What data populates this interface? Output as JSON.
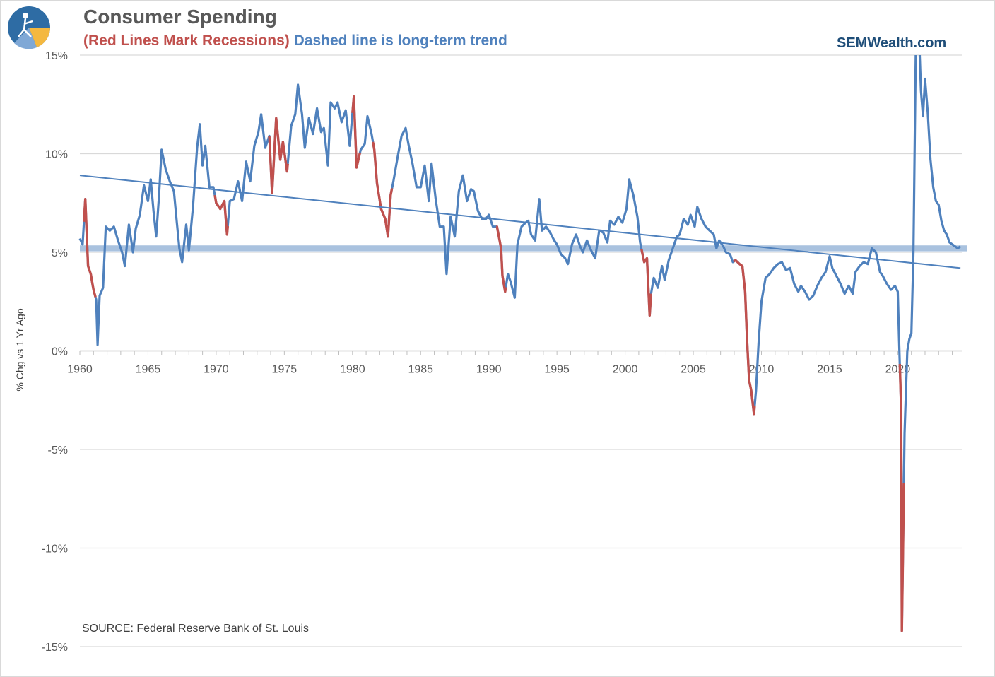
{
  "header": {
    "title": "Consumer Spending",
    "subtitle_red": "(Red Lines Mark Recessions)",
    "subtitle_blue": "Dashed line is long-term trend",
    "brand": "SEMWealth.com"
  },
  "footer": {
    "source": "SOURCE:  Federal Reserve Bank of St. Louis"
  },
  "colors": {
    "series": "#4f81bd",
    "recession": "#c0504d",
    "band": "#a9c2df",
    "grid": "#d9d9d9",
    "axis": "#bfbfbf"
  },
  "icons": {
    "logo": "sem-logo-icon"
  },
  "chart_data": {
    "type": "line",
    "xlabel": "",
    "ylabel": "% Chg vs 1 Yr Ago",
    "xlim": [
      1960,
      2024.8
    ],
    "ylim": [
      -15,
      15
    ],
    "x_ticks": [
      1960,
      1965,
      1970,
      1975,
      1980,
      1985,
      1990,
      1995,
      2000,
      2005,
      2010,
      2015,
      2020
    ],
    "y_ticks": [
      {
        "value": 15,
        "label": "15%"
      },
      {
        "value": 10,
        "label": "10%"
      },
      {
        "value": 5,
        "label": "5%"
      },
      {
        "value": 0,
        "label": "0%"
      },
      {
        "value": -5,
        "label": "-5%"
      },
      {
        "value": -10,
        "label": "-10%"
      },
      {
        "value": -15,
        "label": "-15%"
      }
    ],
    "grid": true,
    "series": [
      {
        "role": "main",
        "points": [
          [
            1960.0,
            5.7
          ],
          [
            1960.2,
            5.4
          ],
          [
            1960.4,
            7.7
          ],
          [
            1960.6,
            4.3
          ],
          [
            1960.8,
            3.9
          ],
          [
            1961.0,
            3.1
          ],
          [
            1961.2,
            2.6
          ],
          [
            1961.3,
            0.3
          ],
          [
            1961.45,
            2.8
          ],
          [
            1961.7,
            3.2
          ],
          [
            1961.9,
            6.3
          ],
          [
            1962.2,
            6.1
          ],
          [
            1962.5,
            6.3
          ],
          [
            1962.8,
            5.6
          ],
          [
            1963.1,
            5.0
          ],
          [
            1963.3,
            4.3
          ],
          [
            1963.6,
            6.4
          ],
          [
            1963.9,
            5.0
          ],
          [
            1964.1,
            6.2
          ],
          [
            1964.4,
            6.9
          ],
          [
            1964.7,
            8.4
          ],
          [
            1965.0,
            7.6
          ],
          [
            1965.2,
            8.7
          ],
          [
            1965.4,
            7.1
          ],
          [
            1965.6,
            5.8
          ],
          [
            1965.8,
            7.8
          ],
          [
            1966.0,
            10.2
          ],
          [
            1966.3,
            9.2
          ],
          [
            1966.6,
            8.6
          ],
          [
            1966.9,
            8.1
          ],
          [
            1967.1,
            6.6
          ],
          [
            1967.3,
            5.2
          ],
          [
            1967.5,
            4.5
          ],
          [
            1967.8,
            6.4
          ],
          [
            1968.0,
            5.1
          ],
          [
            1968.3,
            7.3
          ],
          [
            1968.6,
            10.3
          ],
          [
            1968.8,
            11.5
          ],
          [
            1969.0,
            9.4
          ],
          [
            1969.2,
            10.4
          ],
          [
            1969.5,
            8.3
          ],
          [
            1969.8,
            8.3
          ],
          [
            1970.0,
            7.5
          ],
          [
            1970.3,
            7.2
          ],
          [
            1970.6,
            7.6
          ],
          [
            1970.8,
            5.9
          ],
          [
            1971.0,
            7.6
          ],
          [
            1971.3,
            7.7
          ],
          [
            1971.6,
            8.6
          ],
          [
            1971.9,
            7.6
          ],
          [
            1972.2,
            9.6
          ],
          [
            1972.5,
            8.6
          ],
          [
            1972.8,
            10.4
          ],
          [
            1973.1,
            11.1
          ],
          [
            1973.3,
            12.0
          ],
          [
            1973.6,
            10.3
          ],
          [
            1973.9,
            10.9
          ],
          [
            1974.1,
            8.0
          ],
          [
            1974.4,
            11.8
          ],
          [
            1974.7,
            9.7
          ],
          [
            1974.9,
            10.6
          ],
          [
            1975.2,
            9.1
          ],
          [
            1975.5,
            11.4
          ],
          [
            1975.8,
            12.0
          ],
          [
            1976.0,
            13.5
          ],
          [
            1976.3,
            12.0
          ],
          [
            1976.5,
            10.3
          ],
          [
            1976.8,
            11.8
          ],
          [
            1977.1,
            11.0
          ],
          [
            1977.4,
            12.3
          ],
          [
            1977.7,
            11.1
          ],
          [
            1977.9,
            11.3
          ],
          [
            1978.2,
            9.4
          ],
          [
            1978.4,
            12.6
          ],
          [
            1978.7,
            12.3
          ],
          [
            1978.9,
            12.6
          ],
          [
            1979.2,
            11.6
          ],
          [
            1979.5,
            12.2
          ],
          [
            1979.8,
            10.4
          ],
          [
            1980.1,
            12.9
          ],
          [
            1980.3,
            9.3
          ],
          [
            1980.6,
            10.2
          ],
          [
            1980.9,
            10.5
          ],
          [
            1981.1,
            11.9
          ],
          [
            1981.4,
            11.0
          ],
          [
            1981.6,
            10.2
          ],
          [
            1981.8,
            8.5
          ],
          [
            1982.1,
            7.2
          ],
          [
            1982.4,
            6.7
          ],
          [
            1982.6,
            5.8
          ],
          [
            1982.8,
            7.9
          ],
          [
            1983.0,
            8.6
          ],
          [
            1983.3,
            9.8
          ],
          [
            1983.6,
            10.9
          ],
          [
            1983.9,
            11.3
          ],
          [
            1984.1,
            10.5
          ],
          [
            1984.4,
            9.5
          ],
          [
            1984.7,
            8.3
          ],
          [
            1985.0,
            8.3
          ],
          [
            1985.3,
            9.4
          ],
          [
            1985.6,
            7.6
          ],
          [
            1985.8,
            9.5
          ],
          [
            1986.1,
            7.7
          ],
          [
            1986.4,
            6.3
          ],
          [
            1986.7,
            6.3
          ],
          [
            1986.9,
            3.9
          ],
          [
            1987.2,
            6.8
          ],
          [
            1987.5,
            5.8
          ],
          [
            1987.8,
            8.1
          ],
          [
            1988.1,
            8.9
          ],
          [
            1988.4,
            7.6
          ],
          [
            1988.7,
            8.2
          ],
          [
            1988.9,
            8.1
          ],
          [
            1989.2,
            7.1
          ],
          [
            1989.5,
            6.7
          ],
          [
            1989.8,
            6.7
          ],
          [
            1990.0,
            6.9
          ],
          [
            1990.3,
            6.3
          ],
          [
            1990.6,
            6.3
          ],
          [
            1990.9,
            5.2
          ],
          [
            1991.0,
            3.8
          ],
          [
            1991.2,
            3.0
          ],
          [
            1991.4,
            3.9
          ],
          [
            1991.6,
            3.5
          ],
          [
            1991.9,
            2.7
          ],
          [
            1992.1,
            5.4
          ],
          [
            1992.4,
            6.3
          ],
          [
            1992.7,
            6.5
          ],
          [
            1992.9,
            6.6
          ],
          [
            1993.1,
            5.9
          ],
          [
            1993.4,
            5.6
          ],
          [
            1993.7,
            7.7
          ],
          [
            1993.9,
            6.1
          ],
          [
            1994.2,
            6.3
          ],
          [
            1994.5,
            6.0
          ],
          [
            1994.8,
            5.6
          ],
          [
            1995.0,
            5.4
          ],
          [
            1995.3,
            4.9
          ],
          [
            1995.6,
            4.7
          ],
          [
            1995.8,
            4.4
          ],
          [
            1996.1,
            5.4
          ],
          [
            1996.4,
            5.9
          ],
          [
            1996.7,
            5.3
          ],
          [
            1996.9,
            5.0
          ],
          [
            1997.2,
            5.6
          ],
          [
            1997.5,
            5.1
          ],
          [
            1997.8,
            4.7
          ],
          [
            1998.1,
            6.1
          ],
          [
            1998.4,
            6.0
          ],
          [
            1998.7,
            5.5
          ],
          [
            1998.9,
            6.6
          ],
          [
            1999.2,
            6.4
          ],
          [
            1999.5,
            6.8
          ],
          [
            1999.8,
            6.5
          ],
          [
            2000.1,
            7.2
          ],
          [
            2000.3,
            8.7
          ],
          [
            2000.6,
            7.9
          ],
          [
            2000.9,
            6.8
          ],
          [
            2001.1,
            5.5
          ],
          [
            2001.4,
            4.5
          ],
          [
            2001.6,
            4.7
          ],
          [
            2001.8,
            1.8
          ],
          [
            2001.9,
            2.9
          ],
          [
            2002.1,
            3.7
          ],
          [
            2002.4,
            3.2
          ],
          [
            2002.7,
            4.3
          ],
          [
            2002.9,
            3.6
          ],
          [
            2003.2,
            4.6
          ],
          [
            2003.5,
            5.2
          ],
          [
            2003.8,
            5.8
          ],
          [
            2004.0,
            5.9
          ],
          [
            2004.3,
            6.7
          ],
          [
            2004.6,
            6.4
          ],
          [
            2004.8,
            6.9
          ],
          [
            2005.1,
            6.3
          ],
          [
            2005.3,
            7.3
          ],
          [
            2005.6,
            6.7
          ],
          [
            2005.9,
            6.3
          ],
          [
            2006.2,
            6.1
          ],
          [
            2006.5,
            5.9
          ],
          [
            2006.7,
            5.2
          ],
          [
            2006.9,
            5.6
          ],
          [
            2007.2,
            5.3
          ],
          [
            2007.4,
            5.0
          ],
          [
            2007.7,
            4.9
          ],
          [
            2007.9,
            4.5
          ],
          [
            2008.1,
            4.6
          ],
          [
            2008.4,
            4.4
          ],
          [
            2008.6,
            4.3
          ],
          [
            2008.8,
            3.0
          ],
          [
            2008.95,
            0.5
          ],
          [
            2009.1,
            -1.5
          ],
          [
            2009.25,
            -2.0
          ],
          [
            2009.45,
            -3.2
          ],
          [
            2009.6,
            -2.0
          ],
          [
            2009.8,
            0.5
          ],
          [
            2010.0,
            2.5
          ],
          [
            2010.3,
            3.7
          ],
          [
            2010.6,
            3.9
          ],
          [
            2010.9,
            4.2
          ],
          [
            2011.2,
            4.4
          ],
          [
            2011.5,
            4.5
          ],
          [
            2011.8,
            4.1
          ],
          [
            2012.1,
            4.2
          ],
          [
            2012.4,
            3.4
          ],
          [
            2012.7,
            3.0
          ],
          [
            2012.9,
            3.3
          ],
          [
            2013.2,
            3.0
          ],
          [
            2013.5,
            2.6
          ],
          [
            2013.8,
            2.8
          ],
          [
            2014.1,
            3.3
          ],
          [
            2014.4,
            3.7
          ],
          [
            2014.7,
            4.0
          ],
          [
            2015.0,
            4.8
          ],
          [
            2015.2,
            4.2
          ],
          [
            2015.5,
            3.8
          ],
          [
            2015.8,
            3.4
          ],
          [
            2016.1,
            2.9
          ],
          [
            2016.4,
            3.3
          ],
          [
            2016.7,
            2.9
          ],
          [
            2016.9,
            4.0
          ],
          [
            2017.2,
            4.3
          ],
          [
            2017.5,
            4.5
          ],
          [
            2017.8,
            4.4
          ],
          [
            2018.1,
            5.2
          ],
          [
            2018.4,
            5.0
          ],
          [
            2018.7,
            4.0
          ],
          [
            2018.9,
            3.8
          ],
          [
            2019.2,
            3.4
          ],
          [
            2019.5,
            3.1
          ],
          [
            2019.8,
            3.3
          ],
          [
            2020.0,
            3.0
          ],
          [
            2020.1,
            0.5
          ],
          [
            2020.25,
            -3.0
          ],
          [
            2020.3,
            -14.2
          ],
          [
            2020.5,
            -4.2
          ],
          [
            2020.7,
            0.0
          ],
          [
            2020.85,
            0.6
          ],
          [
            2021.0,
            0.9
          ],
          [
            2021.15,
            5.0
          ],
          [
            2021.3,
            14.0
          ],
          [
            2021.4,
            19.0
          ],
          [
            2021.55,
            16.2
          ],
          [
            2021.7,
            13.2
          ],
          [
            2021.85,
            11.9
          ],
          [
            2022.0,
            13.8
          ],
          [
            2022.2,
            12.1
          ],
          [
            2022.4,
            9.7
          ],
          [
            2022.6,
            8.3
          ],
          [
            2022.8,
            7.6
          ],
          [
            2023.0,
            7.4
          ],
          [
            2023.2,
            6.6
          ],
          [
            2023.4,
            6.1
          ],
          [
            2023.6,
            5.9
          ],
          [
            2023.8,
            5.5
          ],
          [
            2024.0,
            5.4
          ],
          [
            2024.2,
            5.3
          ],
          [
            2024.4,
            5.2
          ],
          [
            2024.6,
            5.3
          ]
        ]
      },
      {
        "role": "recession",
        "segments": [
          {
            "start": 1960.3,
            "end": 1961.15
          },
          {
            "start": 1969.9,
            "end": 1970.85
          },
          {
            "start": 1973.9,
            "end": 1975.25
          },
          {
            "start": 1980.0,
            "end": 1980.55
          },
          {
            "start": 1981.5,
            "end": 1982.9
          },
          {
            "start": 1990.55,
            "end": 1991.25
          },
          {
            "start": 2001.2,
            "end": 2001.9
          },
          {
            "start": 2007.95,
            "end": 2009.5
          },
          {
            "start": 2020.15,
            "end": 2020.45
          }
        ]
      },
      {
        "role": "trend",
        "points": [
          [
            1960.0,
            8.9
          ],
          [
            2024.6,
            4.2
          ]
        ]
      },
      {
        "role": "band",
        "y_range": [
          5.05,
          5.35
        ]
      }
    ]
  }
}
